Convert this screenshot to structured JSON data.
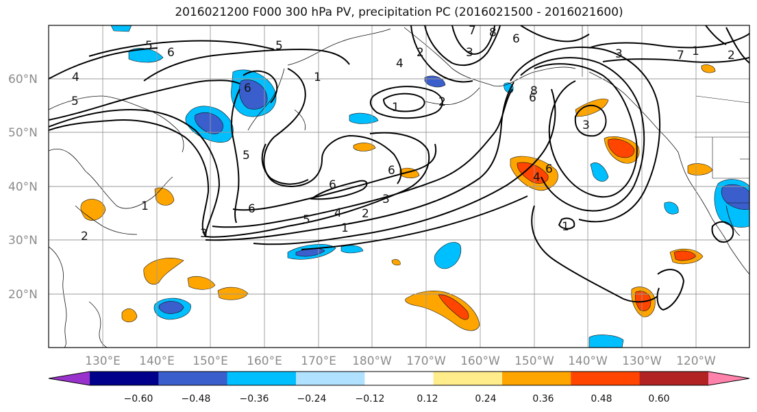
{
  "title": "2016021200 F000 300 hPa PV, precipitation PC (2016021500 - 2016021600)",
  "lat_labels": [
    "60°N",
    "50°N",
    "40°N",
    "30°N",
    "20°N"
  ],
  "lon_labels": [
    "130°E",
    "140°E",
    "150°E",
    "160°E",
    "170°E",
    "180°W",
    "170°W",
    "160°W",
    "150°W",
    "140°W",
    "130°W",
    "120°W"
  ],
  "colorbar": {
    "colors": [
      "#9932cc",
      "#00008b",
      "#3a5fcd",
      "#00bfff",
      "#b0e2ff",
      "#ffffff",
      "#ffec8b",
      "#ffa500",
      "#ff4500",
      "#b22222",
      "#ff82ab"
    ],
    "tick_labels": [
      "−0.60",
      "−0.48",
      "−0.36",
      "−0.24",
      "−0.12",
      "0.12",
      "0.24",
      "0.36",
      "0.48",
      "0.60"
    ]
  },
  "contour_labels": [
    "4",
    "5",
    "5",
    "6",
    "5",
    "3",
    "2",
    "1",
    "1",
    "6",
    "5",
    "4",
    "2",
    "6",
    "3",
    "2",
    "6",
    "1",
    "8",
    "6",
    "7",
    "2",
    "1",
    "3",
    "5",
    "6",
    "4",
    "6",
    "2",
    "1",
    "1",
    "3",
    "6",
    "7",
    "8",
    "3",
    "4"
  ]
}
